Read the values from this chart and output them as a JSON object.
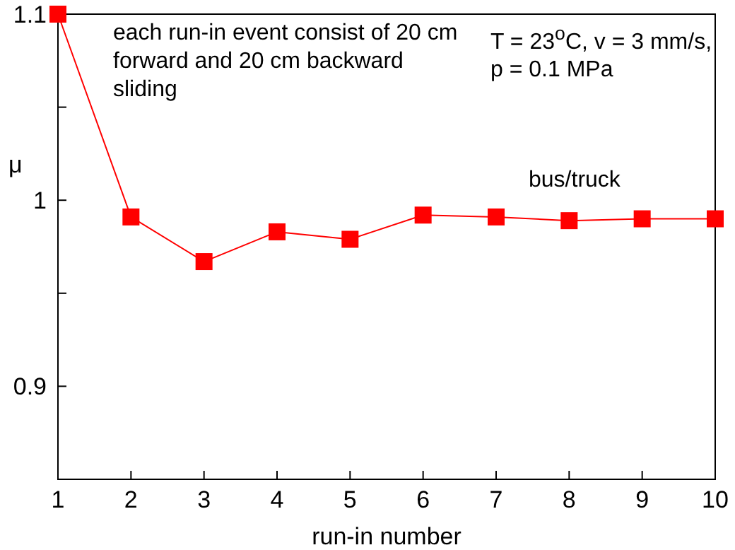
{
  "chart_data": {
    "type": "line",
    "xlabel": "run-in number",
    "ylabel": "μ",
    "x": [
      1,
      2,
      3,
      4,
      5,
      6,
      7,
      8,
      9,
      10
    ],
    "series": [
      {
        "name": "bus/truck",
        "color": "#ff0000",
        "values": [
          1.1,
          0.991,
          0.967,
          0.983,
          0.979,
          0.992,
          0.991,
          0.989,
          0.99,
          0.99
        ]
      }
    ],
    "xlim": [
      1,
      10
    ],
    "xticks": [
      1,
      2,
      3,
      4,
      5,
      6,
      7,
      8,
      9,
      10
    ],
    "ylim": [
      0.85,
      1.1
    ],
    "yticks": [
      0.9,
      {
        "value": 0.95,
        "label": null
      },
      1,
      {
        "value": 1.05,
        "label": null
      },
      1.1
    ],
    "marker": "square",
    "line_style": "solid",
    "grid": false,
    "legend": false,
    "annotations": [
      "each run-in event consist of 20 cm forward and 20 cm backward sliding",
      "T = 23$^{o}$C, v = 3 mm/s, p = 0.1 MPa"
    ]
  }
}
